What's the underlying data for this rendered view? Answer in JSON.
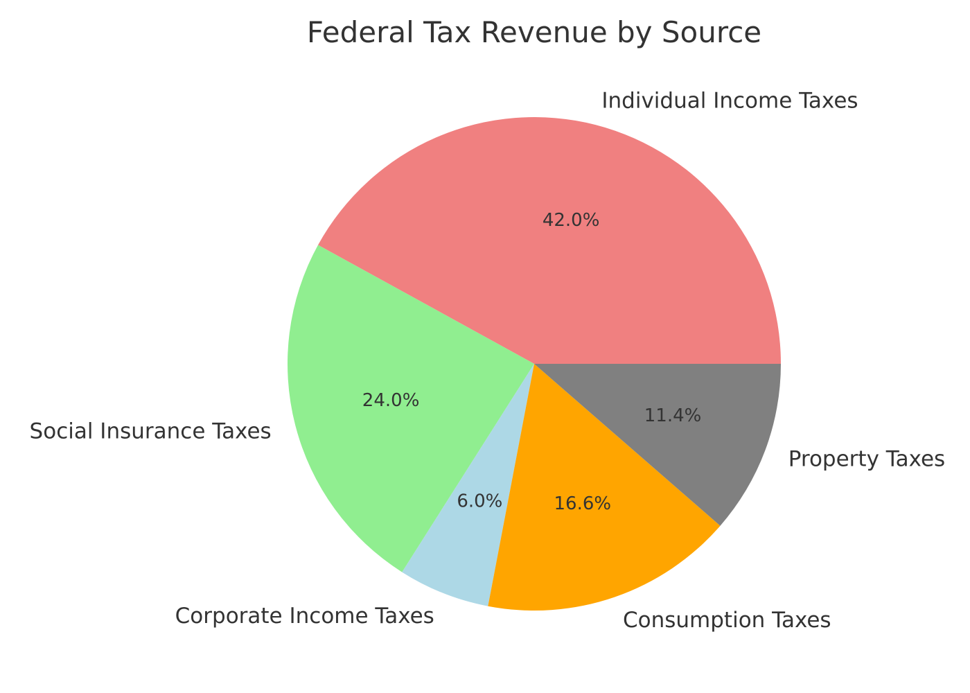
{
  "chart_data": {
    "type": "pie",
    "title": "Federal Tax Revenue by Source",
    "categories": [
      "Individual Income Taxes",
      "Social Insurance Taxes",
      "Corporate Income Taxes",
      "Consumption Taxes",
      "Property Taxes"
    ],
    "values": [
      42.0,
      24.0,
      6.0,
      16.6,
      11.4
    ],
    "value_labels": [
      "42.0%",
      "24.0%",
      "6.0%",
      "16.6%",
      "11.4%"
    ],
    "colors": [
      "#f08080",
      "#90ee90",
      "#add8e6",
      "#ffa500",
      "#808080"
    ],
    "start_angle_deg": 0,
    "direction": "counterclockwise",
    "legend": "none"
  }
}
